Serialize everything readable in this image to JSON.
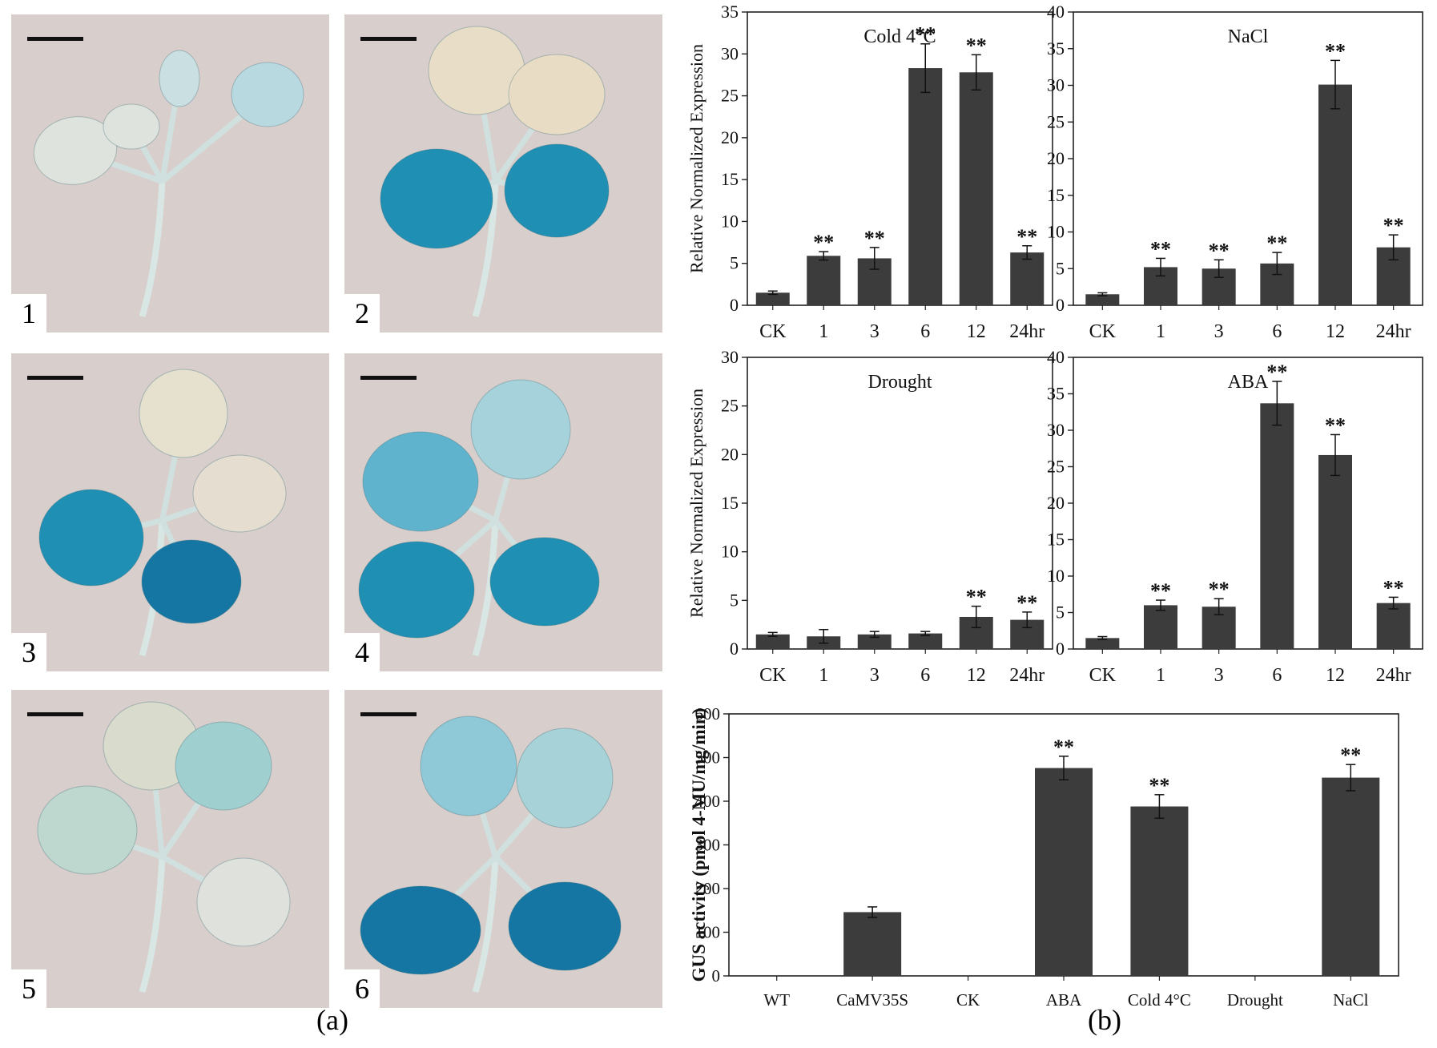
{
  "panel_a": {
    "label": "(a)",
    "photos": [
      {
        "label": "1"
      },
      {
        "label": "2"
      },
      {
        "label": "3"
      },
      {
        "label": "4"
      },
      {
        "label": "5"
      },
      {
        "label": "6"
      }
    ]
  },
  "panel_b": {
    "label": "(b)"
  },
  "chart_data": [
    {
      "type": "bar",
      "title": "Cold 4°C",
      "ylabel": "Relative Normalized Expression",
      "categories": [
        "CK",
        "1",
        "3",
        "6",
        "12",
        "24hr"
      ],
      "values": [
        1.5,
        5.9,
        5.6,
        28.3,
        27.8,
        6.3
      ],
      "errors": [
        0.2,
        0.5,
        1.3,
        2.9,
        2.1,
        0.8
      ],
      "significance": [
        "",
        "**",
        "**",
        "**",
        "**",
        "**"
      ],
      "ylim": [
        0,
        35
      ],
      "yticks": [
        0,
        5,
        10,
        15,
        20,
        25,
        30,
        35
      ],
      "color": "#3c3c3c"
    },
    {
      "type": "bar",
      "title": "NaCl",
      "ylabel": "",
      "categories": [
        "CK",
        "1",
        "3",
        "6",
        "12",
        "24hr"
      ],
      "values": [
        1.5,
        5.2,
        5.0,
        5.7,
        30.1,
        7.9
      ],
      "errors": [
        0.2,
        1.2,
        1.2,
        1.5,
        3.3,
        1.7
      ],
      "significance": [
        "",
        "**",
        "**",
        "**",
        "**",
        "**"
      ],
      "ylim": [
        0,
        40
      ],
      "yticks": [
        0,
        5,
        10,
        15,
        20,
        25,
        30,
        35,
        40
      ],
      "color": "#3c3c3c"
    },
    {
      "type": "bar",
      "title": "Drought",
      "ylabel": "Relative Normalized Expression",
      "categories": [
        "CK",
        "1",
        "3",
        "6",
        "12",
        "24hr"
      ],
      "values": [
        1.5,
        1.3,
        1.5,
        1.6,
        3.3,
        3.0
      ],
      "errors": [
        0.2,
        0.7,
        0.3,
        0.2,
        1.1,
        0.8
      ],
      "significance": [
        "",
        "",
        "",
        "",
        "**",
        "**"
      ],
      "ylim": [
        0,
        30
      ],
      "yticks": [
        0,
        5,
        10,
        15,
        20,
        25,
        30
      ],
      "color": "#3c3c3c"
    },
    {
      "type": "bar",
      "title": "ABA",
      "ylabel": "",
      "categories": [
        "CK",
        "1",
        "3",
        "6",
        "12",
        "24hr"
      ],
      "values": [
        1.5,
        6.0,
        5.8,
        33.7,
        26.6,
        6.3
      ],
      "errors": [
        0.2,
        0.7,
        1.1,
        3.0,
        2.8,
        0.8
      ],
      "significance": [
        "",
        "**",
        "**",
        "**",
        "**",
        "**"
      ],
      "ylim": [
        0,
        40
      ],
      "yticks": [
        0,
        5,
        10,
        15,
        20,
        25,
        30,
        35,
        40
      ],
      "color": "#3c3c3c"
    },
    {
      "type": "bar",
      "title": "",
      "ylabel": "GUS activity (pmol 4-MU/mg/min)",
      "categories": [
        "WT",
        "CaMV35S",
        "CK",
        "ABA",
        "Cold 4°C",
        "Drought",
        "NaCl"
      ],
      "values": [
        0,
        146,
        0,
        476,
        388,
        0,
        454
      ],
      "errors": [
        0,
        12,
        0,
        27,
        27,
        0,
        30
      ],
      "significance": [
        "",
        "",
        "",
        "**",
        "**",
        "",
        "**"
      ],
      "ylim": [
        0,
        600
      ],
      "yticks": [
        0,
        100,
        200,
        300,
        400,
        500,
        600
      ],
      "color": "#3c3c3c"
    }
  ]
}
